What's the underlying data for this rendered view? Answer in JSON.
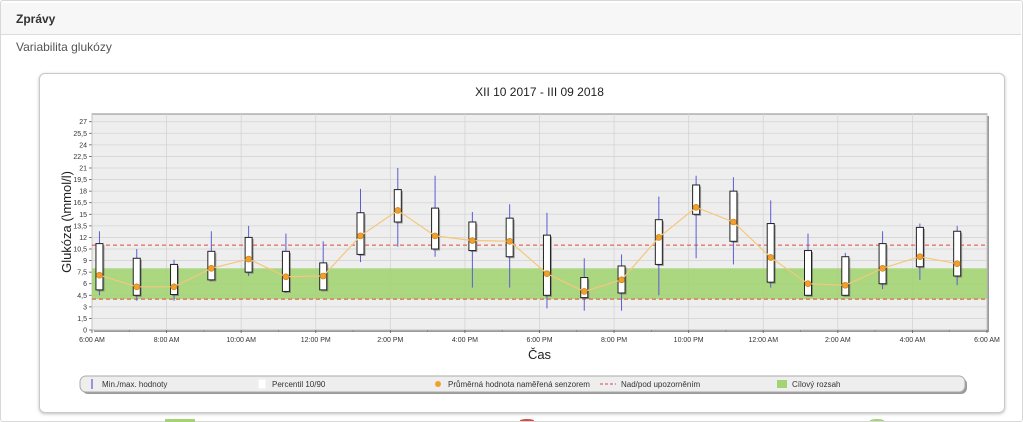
{
  "header": {
    "title": "Zprávy"
  },
  "page": {
    "subtitle": "Variabilita glukózy"
  },
  "colors": {
    "target_band": "#a3d474",
    "warning_line": "#e0473c",
    "minmax_line": "#5b5bd6",
    "mean_dot": "#f0a030",
    "mean_line": "#f5c77a",
    "plot_bg": "#eeeeee",
    "grid": "#d4d4d4"
  },
  "chart_data": {
    "type": "boxplot",
    "title": "XII 10 2017 - III 09 2018",
    "xlabel": "Čas",
    "ylabel": "Glukóza (\\mmol/l)",
    "ylim": [
      0,
      28
    ],
    "y_ticks": [
      "0",
      "1,5",
      "3",
      "4,5",
      "6",
      "7,5",
      "9",
      "10,5",
      "12",
      "13,5",
      "15",
      "16,5",
      "18",
      "19,5",
      "21",
      "22,5",
      "24",
      "25,5",
      "27"
    ],
    "x_ticks": [
      "6:00 AM",
      "8:00 AM",
      "10:00 AM",
      "12:00 PM",
      "2:00 PM",
      "4:00 PM",
      "6:00 PM",
      "8:00 PM",
      "10:00 PM",
      "12:00 AM",
      "2:00 AM",
      "4:00 AM",
      "6:00 AM"
    ],
    "x_range_hours": [
      0,
      24
    ],
    "target_range": [
      4,
      8
    ],
    "warning_lines": [
      4,
      11
    ],
    "series": [
      {
        "hour": 0.2,
        "min": 4.5,
        "max": 12.8,
        "p10": 5.2,
        "p90": 11.2,
        "mean": 7.1
      },
      {
        "hour": 1.2,
        "min": 3.8,
        "max": 10.5,
        "p10": 4.5,
        "p90": 9.3,
        "mean": 5.6
      },
      {
        "hour": 2.2,
        "min": 3.8,
        "max": 9.1,
        "p10": 4.6,
        "p90": 8.5,
        "mean": 5.6
      },
      {
        "hour": 3.2,
        "min": 6.3,
        "max": 12.8,
        "p10": 6.5,
        "p90": 10.2,
        "mean": 8.0
      },
      {
        "hour": 4.2,
        "min": 7.0,
        "max": 13.5,
        "p10": 7.5,
        "p90": 12.0,
        "mean": 9.2
      },
      {
        "hour": 5.2,
        "min": 4.8,
        "max": 12.5,
        "p10": 5.0,
        "p90": 10.2,
        "mean": 6.9
      },
      {
        "hour": 6.2,
        "min": 5.5,
        "max": 11.5,
        "p10": 5.2,
        "p90": 8.7,
        "mean": 7.0
      },
      {
        "hour": 7.2,
        "min": 8.8,
        "max": 18.3,
        "p10": 9.8,
        "p90": 15.2,
        "mean": 12.2
      },
      {
        "hour": 8.2,
        "min": 10.8,
        "max": 21.0,
        "p10": 14.0,
        "p90": 18.2,
        "mean": 15.5
      },
      {
        "hour": 9.2,
        "min": 9.5,
        "max": 20.0,
        "p10": 10.5,
        "p90": 15.8,
        "mean": 12.2
      },
      {
        "hour": 10.2,
        "min": 5.5,
        "max": 15.3,
        "p10": 10.3,
        "p90": 14.0,
        "mean": 11.6
      },
      {
        "hour": 11.2,
        "min": 5.5,
        "max": 16.3,
        "p10": 9.5,
        "p90": 14.5,
        "mean": 11.5
      },
      {
        "hour": 12.2,
        "min": 2.8,
        "max": 15.2,
        "p10": 4.5,
        "p90": 12.3,
        "mean": 7.3
      },
      {
        "hour": 13.2,
        "min": 2.5,
        "max": 9.3,
        "p10": 4.2,
        "p90": 6.8,
        "mean": 5.0
      },
      {
        "hour": 14.2,
        "min": 2.5,
        "max": 9.8,
        "p10": 4.8,
        "p90": 8.3,
        "mean": 6.5
      },
      {
        "hour": 15.2,
        "min": 4.5,
        "max": 17.3,
        "p10": 8.5,
        "p90": 14.3,
        "mean": 12.0
      },
      {
        "hour": 16.2,
        "min": 9.3,
        "max": 20.0,
        "p10": 15.0,
        "p90": 18.8,
        "mean": 15.9
      },
      {
        "hour": 17.2,
        "min": 8.5,
        "max": 19.8,
        "p10": 11.5,
        "p90": 18.0,
        "mean": 14.0
      },
      {
        "hour": 18.2,
        "min": 5.5,
        "max": 16.8,
        "p10": 6.2,
        "p90": 13.8,
        "mean": 9.4
      },
      {
        "hour": 19.2,
        "min": 4.5,
        "max": 12.5,
        "p10": 4.5,
        "p90": 10.3,
        "mean": 6.0
      },
      {
        "hour": 20.2,
        "min": 4.5,
        "max": 10.0,
        "p10": 4.5,
        "p90": 9.5,
        "mean": 5.8
      },
      {
        "hour": 21.2,
        "min": 5.3,
        "max": 12.8,
        "p10": 6.0,
        "p90": 11.2,
        "mean": 8.0
      },
      {
        "hour": 22.2,
        "min": 6.5,
        "max": 13.8,
        "p10": 8.2,
        "p90": 13.3,
        "mean": 9.5
      },
      {
        "hour": 23.2,
        "min": 5.8,
        "max": 13.5,
        "p10": 7.0,
        "p90": 12.8,
        "mean": 8.6
      }
    ],
    "legend": [
      {
        "key": "minmax",
        "label": "Min./max. hodnoty"
      },
      {
        "key": "percentile",
        "label": "Percentil 10/90"
      },
      {
        "key": "mean",
        "label": "Průměrná hodnota naměřená senzorem"
      },
      {
        "key": "warning",
        "label": "Nad/pod upozorněním"
      },
      {
        "key": "target",
        "label": "Cílový rozsah"
      }
    ]
  }
}
